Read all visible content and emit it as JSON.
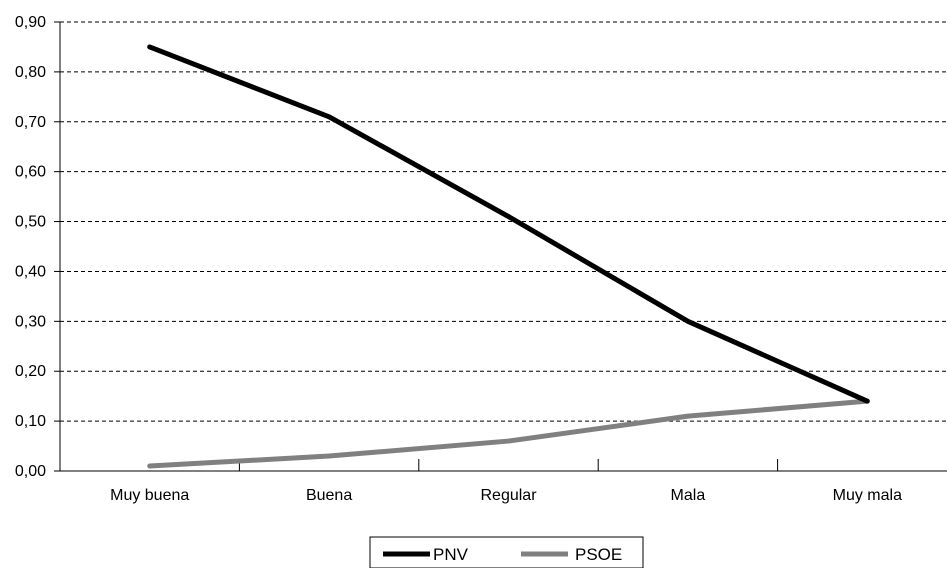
{
  "chart_data": {
    "type": "line",
    "categories": [
      "Muy buena",
      "Buena",
      "Regular",
      "Mala",
      "Muy mala"
    ],
    "series": [
      {
        "name": "PNV",
        "values": [
          0.85,
          0.71,
          0.51,
          0.3,
          0.14
        ],
        "color": "#000000"
      },
      {
        "name": "PSOE",
        "values": [
          0.01,
          0.03,
          0.06,
          0.11,
          0.14
        ],
        "color": "#808080"
      }
    ],
    "ylim": [
      0,
      0.9
    ],
    "yticks": [
      0.0,
      0.1,
      0.2,
      0.3,
      0.4,
      0.5,
      0.6,
      0.7,
      0.8,
      0.9
    ],
    "ytick_labels": [
      "0,00",
      "0,10",
      "0,20",
      "0,30",
      "0,40",
      "0,50",
      "0,60",
      "0,70",
      "0,80",
      "0,90"
    ],
    "grid": "horizontal dashed",
    "legend_position": "bottom-center",
    "title": "",
    "xlabel": "",
    "ylabel": ""
  }
}
